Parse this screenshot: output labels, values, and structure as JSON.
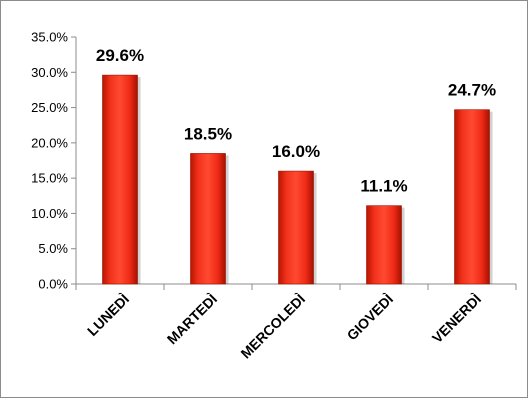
{
  "chart_data": {
    "type": "bar",
    "categories": [
      "LUNEDÌ",
      "MARTEDÌ",
      "MERCOLEDÌ",
      "GIOVEDÌ",
      "VENERDÌ"
    ],
    "values": [
      29.6,
      18.5,
      16.0,
      11.1,
      24.7
    ],
    "data_labels": [
      "29.6%",
      "18.5%",
      "16.0%",
      "11.1%",
      "24.7%"
    ],
    "y_ticks": [
      "0.0%",
      "5.0%",
      "10.0%",
      "15.0%",
      "20.0%",
      "25.0%",
      "30.0%",
      "35.0%"
    ],
    "ylim": [
      0,
      35
    ],
    "grid": false,
    "legend": "none",
    "bar_color": "#e8210f",
    "title": "",
    "xlabel": "",
    "ylabel": ""
  }
}
